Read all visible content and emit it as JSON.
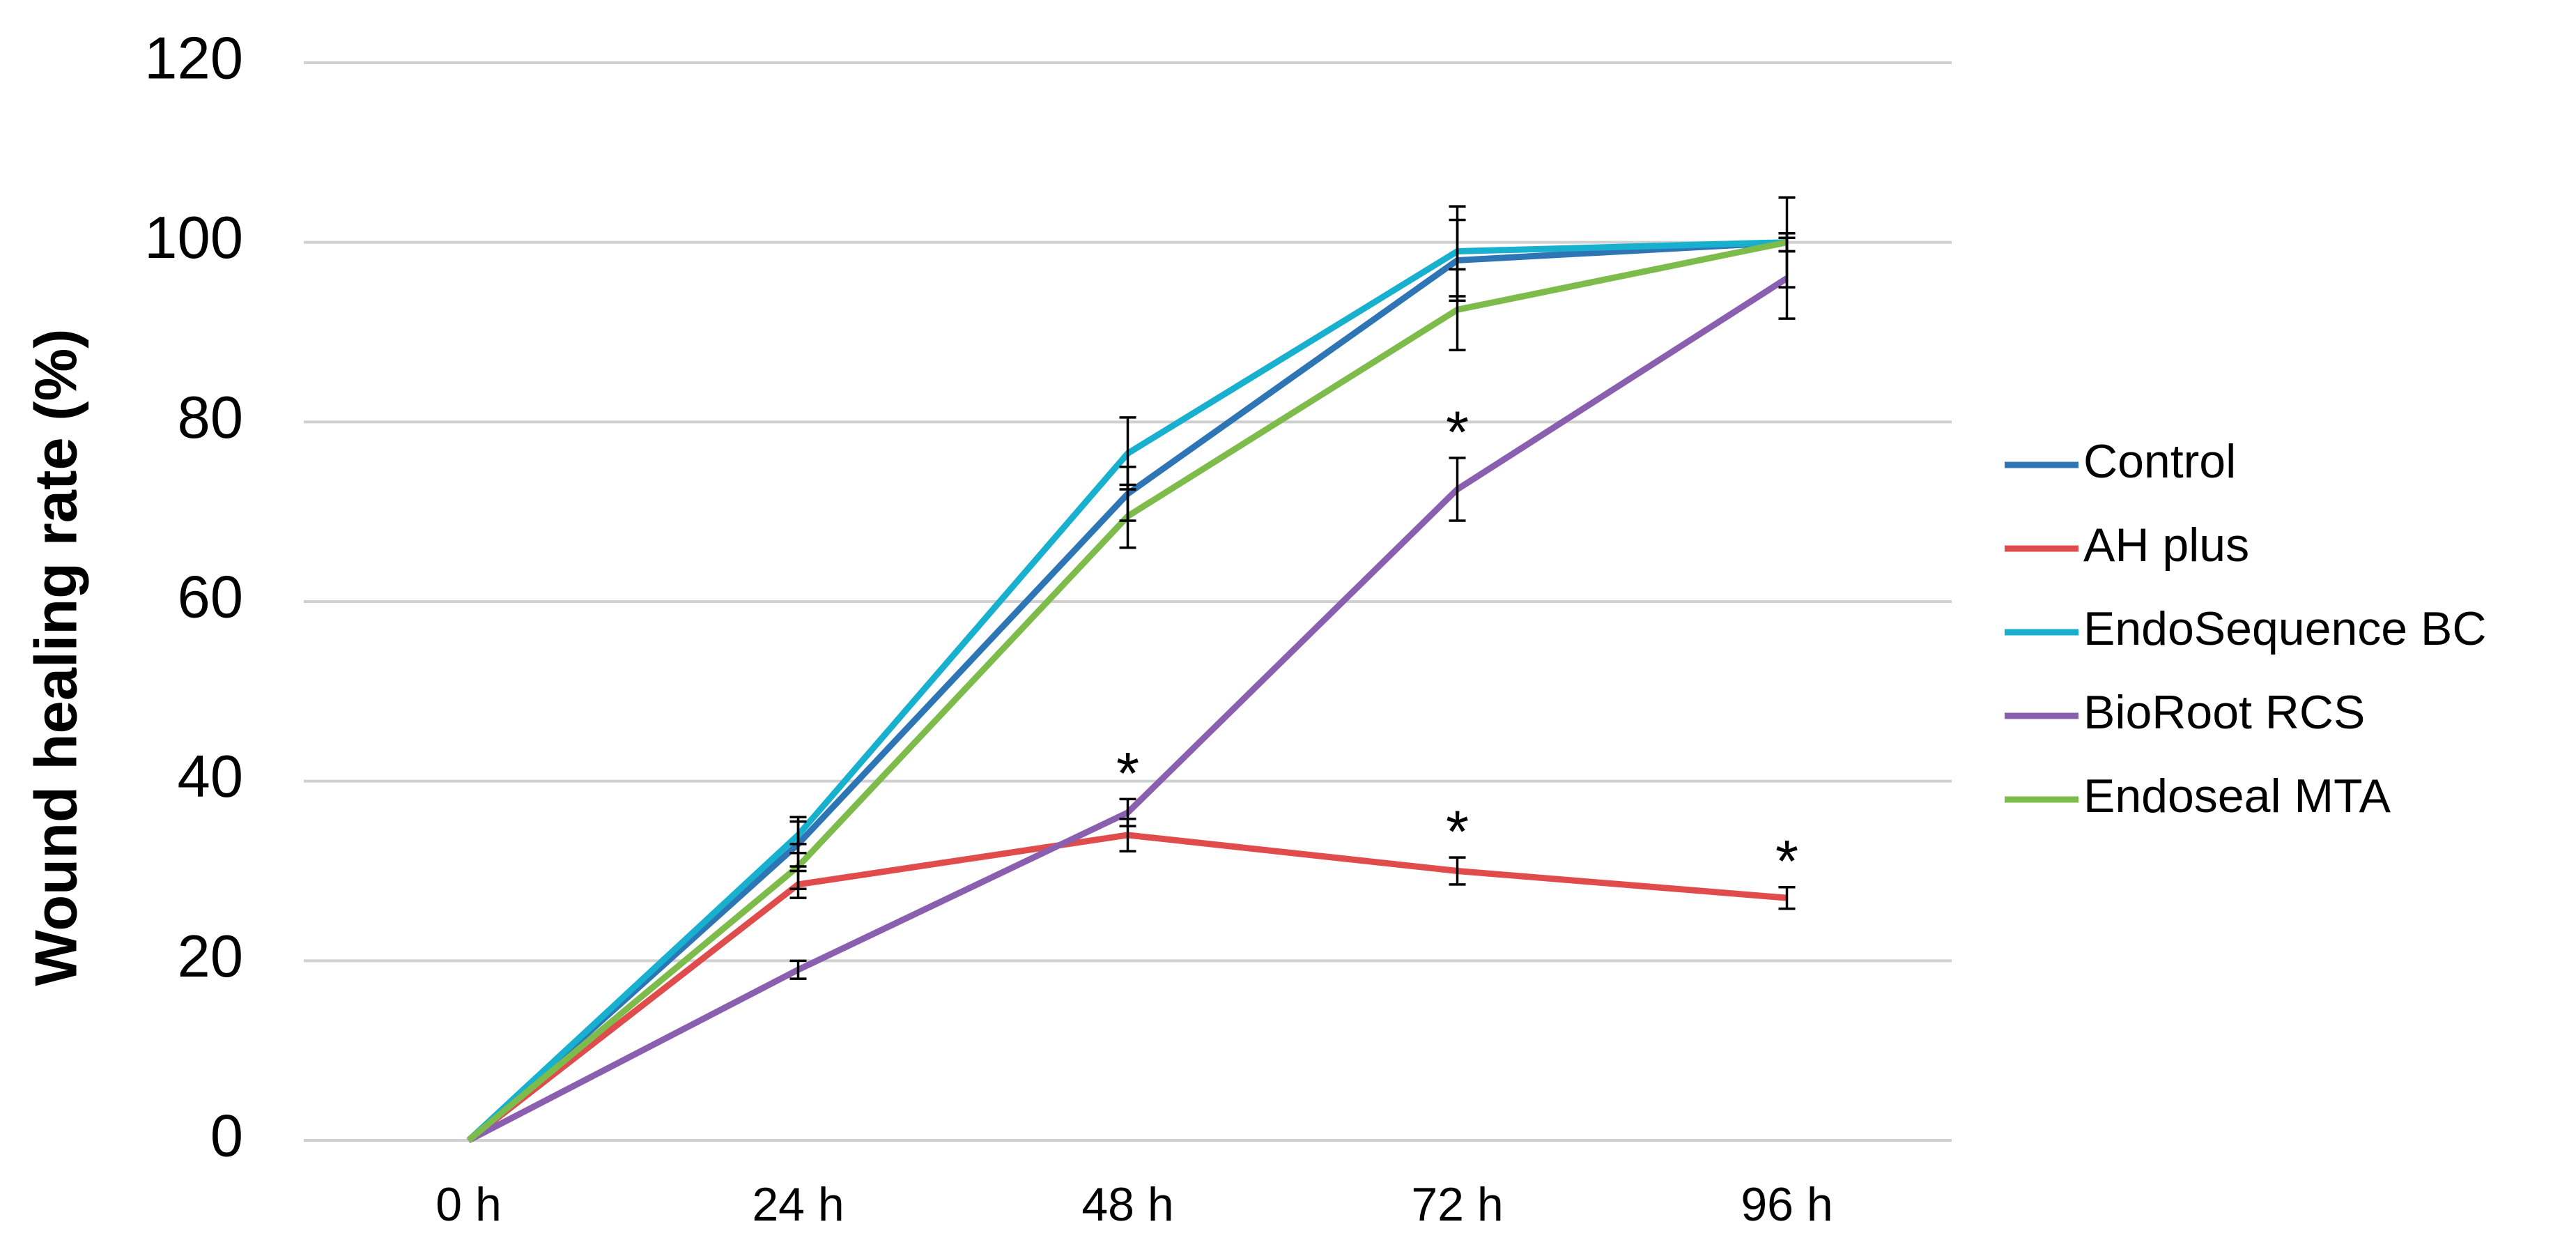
{
  "chart_data": {
    "type": "line",
    "y_label": "Wound healing rate (%)",
    "categories": [
      "0 h",
      "24 h",
      "48 h",
      "72 h",
      "96 h"
    ],
    "series": [
      {
        "name": "Control",
        "color": "#2e75b6",
        "values": [
          0,
          33,
          72,
          98,
          100
        ],
        "errors": [
          0,
          2.5,
          3,
          4.5,
          1
        ]
      },
      {
        "name": "AH plus",
        "color": "#e04b4b",
        "values": [
          0,
          28.5,
          34,
          30,
          27
        ],
        "errors": [
          0,
          1.5,
          1.8,
          1.5,
          1.2
        ],
        "annotations": [
          null,
          null,
          null,
          "*",
          "*"
        ]
      },
      {
        "name": "EndoSequence BC",
        "color": "#17b0cf",
        "values": [
          0,
          34,
          76.5,
          99,
          100
        ],
        "errors": [
          0,
          2,
          4,
          5,
          1
        ]
      },
      {
        "name": "BioRoot RCS",
        "color": "#8a5fb0",
        "values": [
          0,
          19,
          36.5,
          72.5,
          96
        ],
        "errors": [
          0,
          1,
          1.5,
          3.5,
          4.5
        ],
        "annotations": [
          null,
          null,
          "*",
          "*",
          null
        ]
      },
      {
        "name": "Endoseal MTA",
        "color": "#7dbb4a",
        "values": [
          0,
          30.5,
          69.5,
          92.5,
          100
        ],
        "errors": [
          0,
          2.5,
          3.5,
          4.5,
          5
        ]
      }
    ],
    "ylim": [
      0,
      120
    ],
    "yticks": [
      0,
      20,
      40,
      60,
      80,
      100,
      120
    ],
    "grid": true,
    "legend": "right"
  }
}
